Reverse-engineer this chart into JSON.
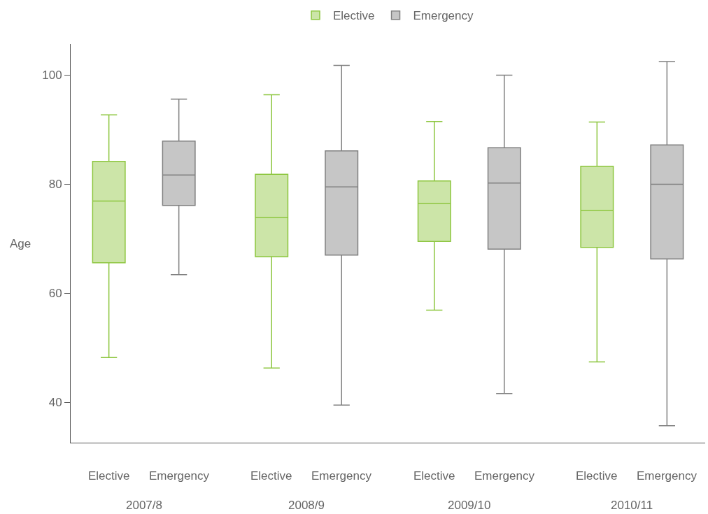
{
  "chart_data": {
    "type": "box",
    "categories": [
      "2007/8",
      "2008/9",
      "2009/10",
      "2010/11"
    ],
    "ylabel": "Age",
    "ylim": [
      32.6,
      105.7
    ],
    "yticks": [
      40,
      60,
      80,
      100
    ],
    "grid": false,
    "legend": "top",
    "series": [
      {
        "name": "Elective",
        "color": "#8dc63f",
        "boxes": [
          {
            "low": 48.2,
            "q1": 65.6,
            "median": 76.9,
            "q3": 84.2,
            "high": 92.7
          },
          {
            "low": 46.3,
            "q1": 66.7,
            "median": 73.9,
            "q3": 81.8,
            "high": 96.4
          },
          {
            "low": 56.9,
            "q1": 69.5,
            "median": 76.5,
            "q3": 80.6,
            "high": 91.5
          },
          {
            "low": 47.4,
            "q1": 68.4,
            "median": 75.2,
            "q3": 83.3,
            "high": 91.4
          }
        ]
      },
      {
        "name": "Emergency",
        "color": "#808080",
        "boxes": [
          {
            "low": 63.4,
            "q1": 76.1,
            "median": 81.7,
            "q3": 87.9,
            "high": 95.6
          },
          {
            "low": 39.5,
            "q1": 67.0,
            "median": 79.5,
            "q3": 86.1,
            "high": 101.8
          },
          {
            "low": 41.6,
            "q1": 68.1,
            "median": 80.2,
            "q3": 86.7,
            "high": 100
          },
          {
            "low": 35.7,
            "q1": 66.3,
            "median": 80,
            "q3": 87.2,
            "high": 102.5
          }
        ]
      }
    ]
  }
}
